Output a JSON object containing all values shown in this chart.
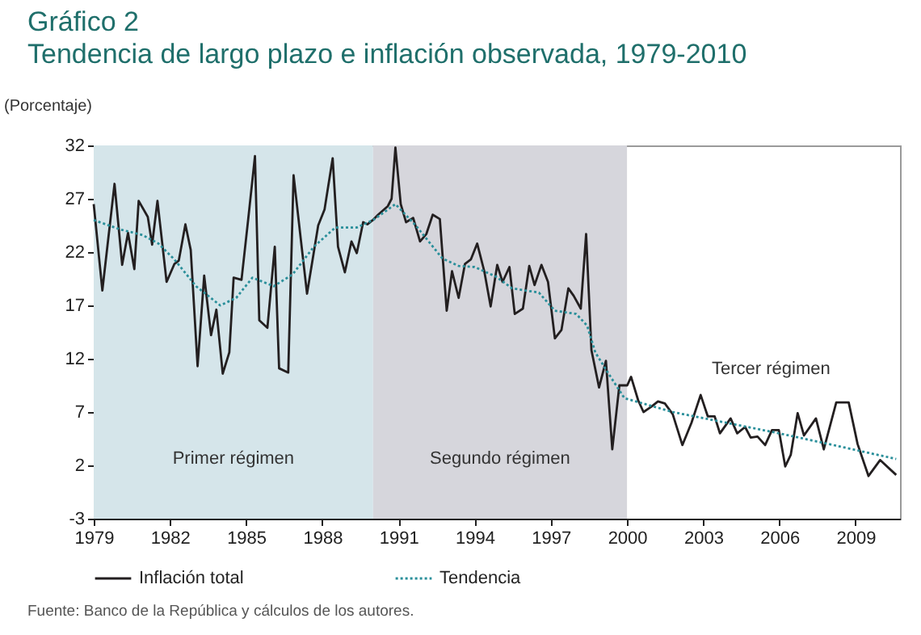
{
  "chart_data": {
    "type": "line",
    "title": "Gráfico 2",
    "subtitle": "Tendencia de largo plazo e inflación observada, 1979-2010",
    "ylabel": "(Porcentaje)",
    "xlim": [
      1979,
      2010.75
    ],
    "xticks": [
      1979,
      1982,
      1985,
      1988,
      1991,
      1994,
      1997,
      2000,
      2003,
      2006,
      2009
    ],
    "ylim": [
      -3,
      32
    ],
    "yticks": [
      -3,
      2,
      7,
      12,
      17,
      22,
      27,
      32
    ],
    "grid": false,
    "legend": "bottom",
    "marker": "none",
    "bands": [
      {
        "axis": "x",
        "from": 1979,
        "to": 1990,
        "label": "Primer régimen",
        "color": "#d5e5ea"
      },
      {
        "axis": "x",
        "from": 1990,
        "to": 2000,
        "label": "Segundo régimen",
        "color": "#d6d6dc"
      }
    ],
    "annotations": [
      "Tercer régimen",
      "Fuente: Banco de la República y cálculos de los autores."
    ],
    "series": [
      {
        "name": "Inflación total",
        "color": "#231f20",
        "line_style": "solid",
        "x": [
          1979.0,
          1979.34,
          1979.82,
          1980.12,
          1980.35,
          1980.6,
          1980.77,
          1981.13,
          1981.3,
          1981.51,
          1981.87,
          1982.18,
          1982.35,
          1982.61,
          1982.82,
          1983.09,
          1983.35,
          1983.62,
          1983.83,
          1984.08,
          1984.34,
          1984.51,
          1984.82,
          1985.08,
          1985.35,
          1985.52,
          1985.84,
          1986.13,
          1986.3,
          1986.66,
          1986.87,
          1987.15,
          1987.4,
          1987.84,
          1988.09,
          1988.41,
          1988.62,
          1988.89,
          1989.15,
          1989.36,
          1989.61,
          1989.78,
          1989.99,
          1990.2,
          1990.58,
          1990.73,
          1990.88,
          1991.09,
          1991.3,
          1991.58,
          1991.85,
          1992.1,
          1992.35,
          1992.63,
          1992.9,
          1993.11,
          1993.37,
          1993.62,
          1993.85,
          1994.1,
          1994.38,
          1994.63,
          1994.89,
          1995.1,
          1995.37,
          1995.58,
          1995.9,
          1996.15,
          1996.36,
          1996.63,
          1996.89,
          1997.16,
          1997.42,
          1997.69,
          1997.9,
          1998.18,
          1998.39,
          1998.6,
          1998.9,
          1999.17,
          1999.42,
          1999.7,
          2000.01,
          2000.16,
          2000.44,
          2000.65,
          2000.96,
          2001.22,
          2001.49,
          2001.8,
          2002.18,
          2002.54,
          2002.9,
          2003.18,
          2003.45,
          2003.66,
          2004.08,
          2004.34,
          2004.65,
          2004.87,
          2005.14,
          2005.44,
          2005.71,
          2005.98,
          2006.23,
          2006.45,
          2006.72,
          2006.97,
          2007.44,
          2007.75,
          2008.24,
          2008.73,
          2009.08,
          2009.51,
          2009.97,
          2010.6
        ],
        "values": [
          26.5,
          18.4,
          28.4,
          20.8,
          23.8,
          20.4,
          26.8,
          25.3,
          22.7,
          26.8,
          19.2,
          20.9,
          21.2,
          24.6,
          22.2,
          11.3,
          19.8,
          14.2,
          16.6,
          10.6,
          12.6,
          19.6,
          19.4,
          25.0,
          31.0,
          15.6,
          14.9,
          22.5,
          11.1,
          10.7,
          29.2,
          23.3,
          18.1,
          24.5,
          26.0,
          30.8,
          22.5,
          20.1,
          23.0,
          21.9,
          24.8,
          24.6,
          25.0,
          25.5,
          26.3,
          27.0,
          31.8,
          26.5,
          24.8,
          25.2,
          23.0,
          23.7,
          25.5,
          25.1,
          16.5,
          20.2,
          17.7,
          20.9,
          21.3,
          22.8,
          20.2,
          16.9,
          20.8,
          19.2,
          20.6,
          16.2,
          16.7,
          20.7,
          18.9,
          20.8,
          19.2,
          13.9,
          14.7,
          18.6,
          17.9,
          16.7,
          23.7,
          12.8,
          9.3,
          11.8,
          3.5,
          9.5,
          9.5,
          10.3,
          8.1,
          7.0,
          7.5,
          8.0,
          7.8,
          6.8,
          3.9,
          6.0,
          8.6,
          6.6,
          6.6,
          5.0,
          6.4,
          5.0,
          5.6,
          4.6,
          4.7,
          3.9,
          5.3,
          5.3,
          1.9,
          3.0,
          6.9,
          4.8,
          6.4,
          3.5,
          7.9,
          7.9,
          4.0,
          1.0,
          2.5,
          1.1
        ]
      },
      {
        "name": "Tendencia",
        "color": "#2a8f9a",
        "line_style": "dotted",
        "x": [
          1979.0,
          1980.08,
          1980.92,
          1981.55,
          1982.18,
          1983.03,
          1983.98,
          1984.61,
          1985.25,
          1986.09,
          1986.83,
          1987.67,
          1988.51,
          1989.36,
          1990.0,
          1990.88,
          1991.68,
          1992.73,
          1993.37,
          1994.0,
          1994.84,
          1995.47,
          1996.53,
          1997.16,
          1998.0,
          1998.43,
          1998.75,
          1999.27,
          1999.9,
          2001.8,
          2003.9,
          2006.0,
          2008.13,
          2010.6
        ],
        "values": [
          25.0,
          24.1,
          23.6,
          22.8,
          21.3,
          18.8,
          17.0,
          17.7,
          19.6,
          18.8,
          19.9,
          22.5,
          24.3,
          24.3,
          25.0,
          26.5,
          24.5,
          21.4,
          20.7,
          20.6,
          19.7,
          18.6,
          18.2,
          16.5,
          16.2,
          15.1,
          12.6,
          10.6,
          8.3,
          7.0,
          6.0,
          5.0,
          3.9,
          2.6
        ]
      }
    ]
  }
}
